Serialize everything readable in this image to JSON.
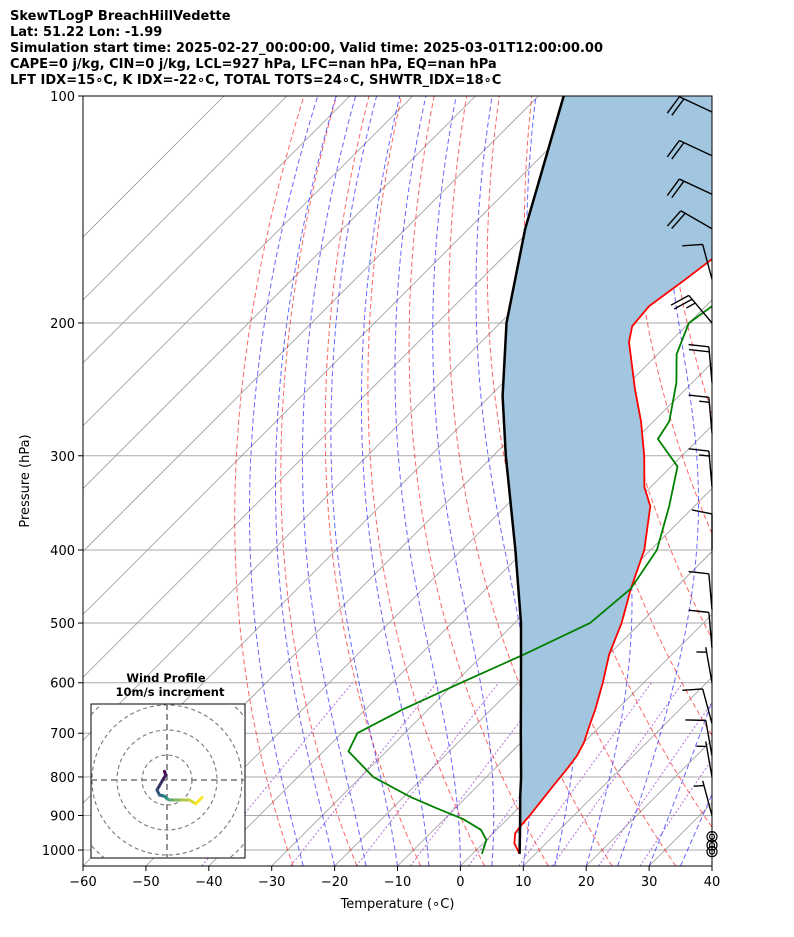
{
  "title_lines": [
    "SkewTLogP BreachHillVedette",
    "Lat: 51.22   Lon: -1.99",
    "Simulation start time: 2025-02-27_00:00:00, Valid time: 2025-03-01T12:00:00.00",
    "CAPE=0 j/kg, CIN=0 j/kg, LCL=927 hPa, LFC=nan hPa, EQ=nan hPa",
    "LFT IDX=15∘C, K IDX=-22∘C, TOTAL TOTS=24∘C, SHWTR_IDX=18∘C"
  ],
  "chart_data": {
    "type": "line",
    "xlabel": "Temperature (∘C)",
    "ylabel": "Pressure (hPa)",
    "xlim": [
      -60,
      40
    ],
    "ylim_hpa": [
      1050,
      100
    ],
    "log_scale_y": true,
    "skew": true,
    "grid": true,
    "x_ticks": [
      -60,
      -50,
      -40,
      -30,
      -20,
      -10,
      0,
      10,
      20,
      30,
      40
    ],
    "y_ticks": [
      1000,
      900,
      800,
      700,
      600,
      500,
      400,
      300,
      200,
      100
    ],
    "series": [
      {
        "key": "temperature",
        "color": "#ff0000",
        "points": [
          [
            1012,
            7.5
          ],
          [
            980,
            5.0
          ],
          [
            950,
            3.5
          ],
          [
            930,
            3.2
          ],
          [
            900,
            3.0
          ],
          [
            860,
            2.5
          ],
          [
            820,
            2.0
          ],
          [
            780,
            1.5
          ],
          [
            750,
            1.0
          ],
          [
            720,
            0.0
          ],
          [
            690,
            -1.5
          ],
          [
            650,
            -3.5
          ],
          [
            600,
            -6.5
          ],
          [
            550,
            -10.0
          ],
          [
            500,
            -13.0
          ],
          [
            450,
            -17.0
          ],
          [
            400,
            -21.0
          ],
          [
            350,
            -27.0
          ],
          [
            330,
            -31.0
          ],
          [
            300,
            -36.0
          ],
          [
            270,
            -42.0
          ],
          [
            245,
            -48.0
          ],
          [
            225,
            -53.0
          ],
          [
            212,
            -56.5
          ],
          [
            202,
            -58.5
          ],
          [
            190,
            -59.0
          ],
          [
            175,
            -57.5
          ],
          [
            160,
            -56.0
          ],
          [
            140,
            -54.0
          ],
          [
            125,
            -53.0
          ],
          [
            110,
            -51.5
          ],
          [
            100,
            -50.5
          ]
        ]
      },
      {
        "key": "dewpoint",
        "color": "#008000",
        "points": [
          [
            1012,
            1.5
          ],
          [
            970,
            0.0
          ],
          [
            940,
            -2.5
          ],
          [
            910,
            -7.0
          ],
          [
            880,
            -13.0
          ],
          [
            850,
            -19.0
          ],
          [
            800,
            -28.0
          ],
          [
            740,
            -36.0
          ],
          [
            700,
            -37.5
          ],
          [
            650,
            -34.0
          ],
          [
            600,
            -29.0
          ],
          [
            550,
            -23.5
          ],
          [
            500,
            -18.0
          ],
          [
            450,
            -17.0
          ],
          [
            400,
            -19.0
          ],
          [
            350,
            -24.0
          ],
          [
            310,
            -29.0
          ],
          [
            285,
            -36.5
          ],
          [
            270,
            -37.5
          ],
          [
            240,
            -42.5
          ],
          [
            220,
            -47.0
          ],
          [
            200,
            -50.0
          ],
          [
            190,
            -49.0
          ],
          [
            175,
            -48.5
          ],
          [
            160,
            -50.0
          ],
          [
            145,
            -49.5
          ],
          [
            135,
            -50.0
          ],
          [
            120,
            -48.0
          ],
          [
            110,
            -46.5
          ],
          [
            100,
            -45.0
          ]
        ]
      },
      {
        "key": "parcel",
        "color": "#000000",
        "points": [
          [
            1012,
            7.5
          ],
          [
            927,
            3.0
          ],
          [
            850,
            -1.5
          ],
          [
            800,
            -4.5
          ],
          [
            700,
            -11.5
          ],
          [
            600,
            -19.5
          ],
          [
            500,
            -29.0
          ],
          [
            400,
            -41.5
          ],
          [
            300,
            -58.0
          ],
          [
            250,
            -68.0
          ],
          [
            200,
            -79.0
          ],
          [
            150,
            -91.0
          ],
          [
            100,
            -106.0
          ]
        ]
      }
    ],
    "hodograph": {
      "title_line1": "Wind Profile",
      "title_line2": "10m/s increment",
      "ring_step_ms": 10,
      "points": [
        [
          -1.0,
          3.5
        ],
        [
          -0.5,
          2.0
        ],
        [
          -2.0,
          -0.5
        ],
        [
          -4.0,
          -4.0
        ],
        [
          -3.0,
          -6.0
        ],
        [
          -1.0,
          -6.5
        ],
        [
          0.0,
          -7.5
        ],
        [
          1.0,
          -8.0
        ],
        [
          3.0,
          -8.0
        ],
        [
          6.0,
          -8.0
        ],
        [
          9.0,
          -8.0
        ],
        [
          11.5,
          -9.5
        ],
        [
          14.0,
          -7.0
        ]
      ]
    },
    "wind_barbs": [
      {
        "p": 1005,
        "spd": 0,
        "dir": 0
      },
      {
        "p": 985,
        "spd": 0,
        "dir": 0
      },
      {
        "p": 960,
        "spd": 0,
        "dir": 0
      },
      {
        "p": 900,
        "spd": 5,
        "dir": 345
      },
      {
        "p": 800,
        "spd": 5,
        "dir": 350
      },
      {
        "p": 750,
        "spd": 10,
        "dir": 350
      },
      {
        "p": 680,
        "spd": 10,
        "dir": 345
      },
      {
        "p": 600,
        "spd": 5,
        "dir": 350
      },
      {
        "p": 540,
        "spd": 10,
        "dir": 355
      },
      {
        "p": 480,
        "spd": 10,
        "dir": 355
      },
      {
        "p": 400,
        "spd": 10,
        "dir": 0
      },
      {
        "p": 330,
        "spd": 15,
        "dir": 355
      },
      {
        "p": 280,
        "spd": 15,
        "dir": 355
      },
      {
        "p": 240,
        "spd": 20,
        "dir": 355
      },
      {
        "p": 200,
        "spd": 25,
        "dir": 320
      },
      {
        "p": 175,
        "spd": 10,
        "dir": 345
      },
      {
        "p": 150,
        "spd": 20,
        "dir": 300
      },
      {
        "p": 135,
        "spd": 20,
        "dir": 295
      },
      {
        "p": 120,
        "spd": 20,
        "dir": 295
      },
      {
        "p": 105,
        "spd": 20,
        "dir": 295
      }
    ],
    "colors": {
      "shade": "#a2c6df",
      "dry_adiabat": "#ff0000",
      "moist_adiabat": "#0000ff",
      "mixing_ratio": "#9933cc",
      "isotherm": "#9a9a9a",
      "isobar": "#aaaaaa",
      "hodo_start": "#440154",
      "hodo_mid": "#21918c",
      "hodo_end": "#fde725"
    }
  }
}
